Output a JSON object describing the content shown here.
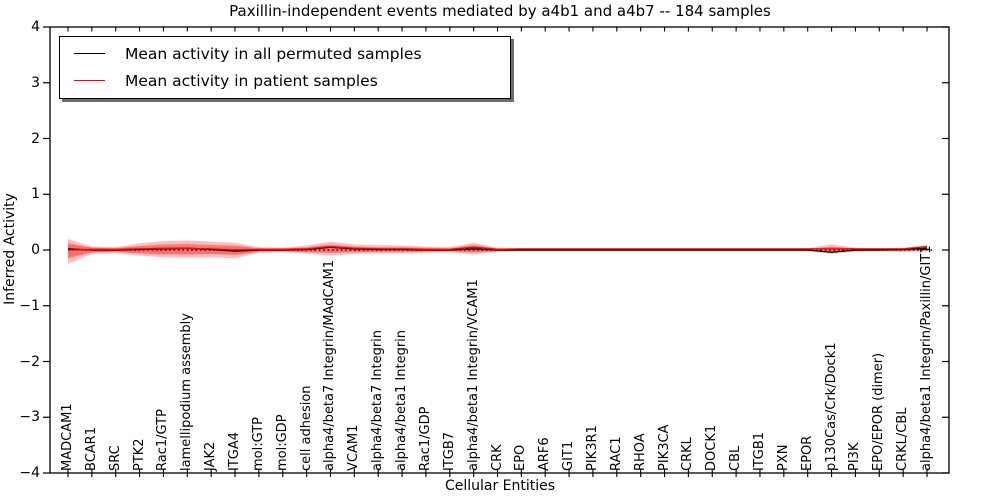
{
  "title": "Paxillin-independent events mediated by a4b1 and a4b7 -- 184 samples",
  "legend": {
    "items": [
      {
        "label": "Mean activity in all permuted samples",
        "color": "#000000"
      },
      {
        "label": "Mean activity in patient samples",
        "color": "#ff0000"
      }
    ]
  },
  "axes": {
    "xlabel": "Cellular Entities",
    "ylabel": "Inferred Activity",
    "ytick_labels": [
      "4",
      "3",
      "2",
      "1",
      "0",
      "−1",
      "−2",
      "−3",
      "−4"
    ],
    "ytick_values": [
      4,
      3,
      2,
      1,
      0,
      -1,
      -2,
      -3,
      -4
    ]
  },
  "colors": {
    "permuted_line": "#000000",
    "patient_line": "#ff0000",
    "patient_band_outer": "rgba(255,40,40,0.30)",
    "patient_band_inner": "rgba(255,40,40,0.42)",
    "permuted_band": "rgba(70,70,70,0.18)",
    "zero_line": "#000000"
  },
  "chart_data": {
    "type": "line",
    "title": "Paxillin-independent events mediated by a4b1 and a4b7 -- 184 samples",
    "xlabel": "Cellular Entities",
    "ylabel": "Inferred Activity",
    "ylim": [
      -4,
      4
    ],
    "grid": false,
    "legend_position": "upper-left",
    "zero_reference_line": {
      "y": 0,
      "style": "dotted",
      "color": "#000000"
    },
    "categories": [
      "MADCAM1",
      "BCAR1",
      "SRC",
      "PTK2",
      "Rac1/GTP",
      "lamellipodium assembly",
      "JAK2",
      "ITGA4",
      "mol:GTP",
      "mol:GDP",
      "cell adhesion",
      "alpha4/beta7 Integrin/MAdCAM1",
      "VCAM1",
      "alpha4/beta7 Integrin",
      "alpha4/beta1 Integrin",
      "Rac1/GDP",
      "ITGB7",
      "alpha4/beta1 Integrin/VCAM1",
      "CRK",
      "EPO",
      "ARF6",
      "GIT1",
      "PIK3R1",
      "RAC1",
      "RHOA",
      "PIK3CA",
      "CRKL",
      "DOCK1",
      "CBL",
      "ITGB1",
      "PXN",
      "EPOR",
      "p130Cas/Crk/Dock1",
      "PI3K",
      "EPO/EPOR (dimer)",
      "CRKL/CBL",
      "alpha4/beta1 Integrin/Paxillin/GIT1"
    ],
    "series": [
      {
        "name": "Mean activity in all permuted samples",
        "color": "#000000",
        "values": [
          0.02,
          0.0,
          0.0,
          0.01,
          0.02,
          0.03,
          0.01,
          -0.02,
          0.0,
          0.0,
          0.01,
          0.05,
          0.02,
          0.01,
          0.01,
          0.0,
          0.0,
          0.02,
          0.0,
          0.0,
          0.0,
          0.0,
          0.0,
          0.0,
          0.0,
          0.0,
          0.0,
          0.0,
          0.0,
          0.0,
          0.0,
          0.0,
          -0.04,
          0.0,
          0.0,
          0.01,
          0.03
        ]
      },
      {
        "name": "Mean activity in patient samples",
        "color": "#ff0000",
        "values": [
          0.0,
          0.01,
          0.01,
          0.02,
          0.03,
          0.03,
          0.02,
          0.0,
          0.01,
          0.01,
          0.02,
          0.06,
          0.03,
          0.02,
          0.02,
          0.01,
          0.01,
          0.05,
          0.01,
          0.02,
          0.02,
          0.02,
          0.02,
          0.02,
          0.02,
          0.02,
          0.02,
          0.02,
          0.02,
          0.02,
          0.02,
          0.02,
          0.02,
          0.02,
          0.02,
          0.02,
          0.06
        ]
      }
    ],
    "bands": [
      {
        "name": "permuted-sample-spread",
        "color": "rgba(70,70,70,0.18)",
        "hi": [
          0.1,
          0.05,
          0.04,
          0.06,
          0.07,
          0.07,
          0.06,
          0.06,
          0.04,
          0.03,
          0.04,
          0.06,
          0.05,
          0.04,
          0.04,
          0.03,
          0.03,
          0.05,
          0.03,
          0.03,
          0.03,
          0.03,
          0.03,
          0.03,
          0.03,
          0.03,
          0.03,
          0.03,
          0.03,
          0.03,
          0.03,
          0.03,
          0.05,
          0.03,
          0.03,
          0.03,
          0.04
        ],
        "lo": [
          -0.12,
          -0.05,
          -0.04,
          -0.06,
          -0.07,
          -0.07,
          -0.07,
          -0.08,
          -0.04,
          -0.03,
          -0.04,
          -0.05,
          -0.04,
          -0.04,
          -0.04,
          -0.03,
          -0.03,
          -0.05,
          -0.03,
          -0.03,
          -0.03,
          -0.03,
          -0.03,
          -0.03,
          -0.03,
          -0.03,
          -0.03,
          -0.03,
          -0.03,
          -0.03,
          -0.03,
          -0.03,
          -0.07,
          -0.03,
          -0.03,
          -0.03,
          -0.03
        ]
      },
      {
        "name": "patient-spread-outer",
        "color": "rgba(255,40,40,0.30)",
        "hi": [
          0.2,
          0.06,
          0.05,
          0.12,
          0.16,
          0.17,
          0.15,
          0.13,
          0.05,
          0.04,
          0.08,
          0.15,
          0.1,
          0.09,
          0.08,
          0.06,
          0.05,
          0.13,
          0.04,
          0.03,
          0.03,
          0.03,
          0.03,
          0.03,
          0.03,
          0.03,
          0.03,
          0.03,
          0.03,
          0.03,
          0.03,
          0.03,
          0.1,
          0.04,
          0.03,
          0.04,
          0.09
        ],
        "lo": [
          -0.25,
          -0.07,
          -0.06,
          -0.1,
          -0.13,
          -0.14,
          -0.13,
          -0.15,
          -0.05,
          -0.04,
          -0.06,
          -0.1,
          -0.07,
          -0.06,
          -0.06,
          -0.05,
          -0.04,
          -0.08,
          -0.03,
          -0.02,
          -0.02,
          -0.02,
          -0.02,
          -0.02,
          -0.02,
          -0.02,
          -0.02,
          -0.02,
          -0.02,
          -0.02,
          -0.02,
          -0.02,
          -0.06,
          -0.03,
          -0.02,
          -0.03,
          -0.02
        ]
      },
      {
        "name": "patient-spread-inner",
        "color": "rgba(255,40,40,0.42)",
        "hi": [
          0.12,
          0.04,
          0.03,
          0.07,
          0.1,
          0.11,
          0.09,
          0.08,
          0.03,
          0.03,
          0.05,
          0.1,
          0.06,
          0.05,
          0.05,
          0.04,
          0.03,
          0.09,
          0.03,
          0.02,
          0.02,
          0.02,
          0.02,
          0.02,
          0.02,
          0.02,
          0.02,
          0.02,
          0.02,
          0.02,
          0.02,
          0.02,
          0.06,
          0.03,
          0.02,
          0.03,
          0.07
        ],
        "lo": [
          -0.15,
          -0.04,
          -0.03,
          -0.06,
          -0.08,
          -0.08,
          -0.07,
          -0.09,
          -0.03,
          -0.02,
          -0.04,
          -0.05,
          -0.04,
          -0.03,
          -0.03,
          -0.03,
          -0.02,
          -0.04,
          -0.02,
          -0.01,
          -0.01,
          -0.01,
          -0.01,
          -0.01,
          -0.01,
          -0.01,
          -0.01,
          -0.01,
          -0.01,
          -0.01,
          -0.01,
          -0.01,
          -0.04,
          -0.02,
          -0.01,
          -0.02,
          0.01
        ]
      }
    ]
  }
}
